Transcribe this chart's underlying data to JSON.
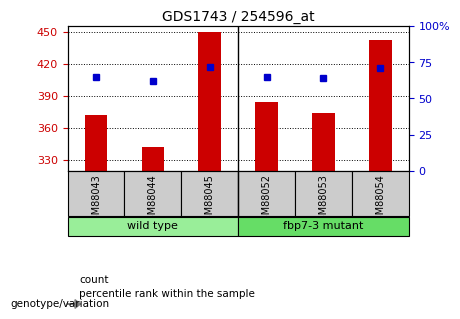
{
  "title": "GDS1743 / 254596_at",
  "samples": [
    "GSM88043",
    "GSM88044",
    "GSM88045",
    "GSM88052",
    "GSM88053",
    "GSM88054"
  ],
  "counts": [
    372,
    342,
    450,
    384,
    374,
    442
  ],
  "percentile_ranks": [
    65,
    62,
    72,
    65,
    64,
    71
  ],
  "ylim_left": [
    320,
    455
  ],
  "ylim_right": [
    0,
    100
  ],
  "yticks_left": [
    330,
    360,
    390,
    420,
    450
  ],
  "yticks_right": [
    0,
    25,
    50,
    75,
    100
  ],
  "ytick_labels_right": [
    "0",
    "25",
    "50",
    "75",
    "100%"
  ],
  "bar_color": "#cc0000",
  "dot_color": "#0000cc",
  "bar_width": 0.4,
  "groups": [
    {
      "label": "wild type",
      "indices": [
        0,
        1,
        2
      ],
      "color": "#99ee99"
    },
    {
      "label": "fbp7-3 mutant",
      "indices": [
        3,
        4,
        5
      ],
      "color": "#66dd66"
    }
  ],
  "genotype_label": "genotype/variation",
  "legend_items": [
    {
      "label": "count",
      "color": "#cc0000"
    },
    {
      "label": "percentile rank within the sample",
      "color": "#0000cc"
    }
  ],
  "grid_color": "black",
  "tick_color_left": "#cc0000",
  "tick_color_right": "#0000cc",
  "bg_plot": "white",
  "bg_sample_row": "#cccccc",
  "bg_fig": "white"
}
